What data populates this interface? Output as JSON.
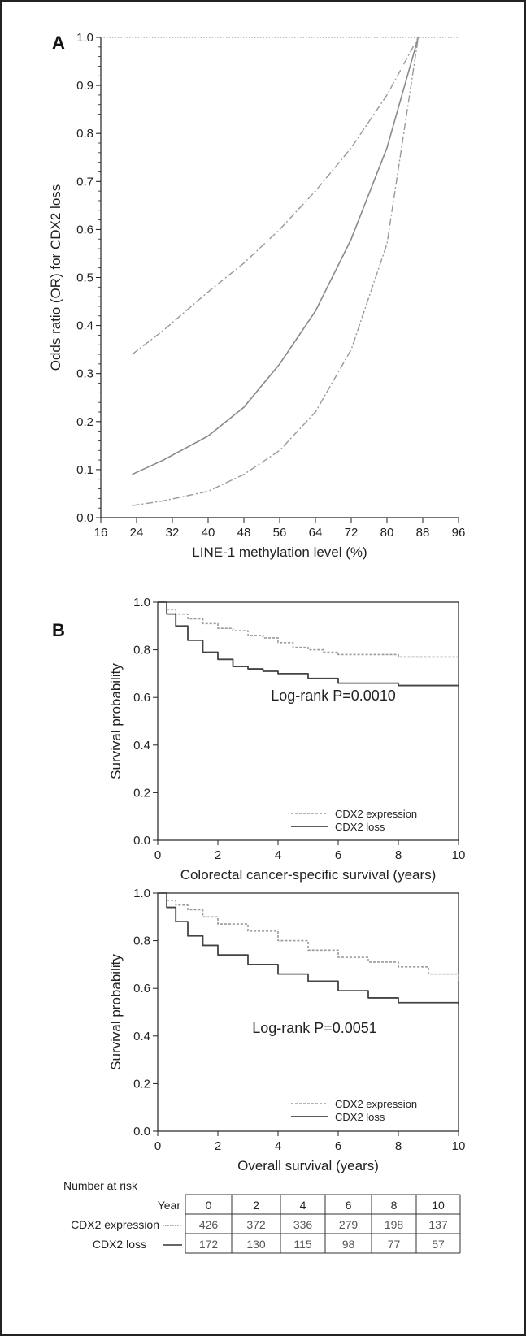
{
  "panels": {
    "a": "A",
    "b": "B"
  },
  "chart_data": [
    {
      "type": "line",
      "panel": "A",
      "xlabel": "LINE-1 methylation level (%)",
      "ylabel": "Odds ratio (OR) for CDX2 loss",
      "xlim": [
        16,
        96
      ],
      "ylim": [
        0.0,
        1.0
      ],
      "xticks": [
        16,
        24,
        32,
        40,
        48,
        56,
        64,
        72,
        80,
        88,
        96
      ],
      "yticks": [
        0.0,
        0.1,
        0.2,
        0.3,
        0.4,
        0.5,
        0.6,
        0.7,
        0.8,
        0.9,
        1.0
      ],
      "reference_line_y": 1.0,
      "series": [
        {
          "style": "solid",
          "x": [
            23,
            30,
            40,
            48,
            56,
            64,
            72,
            80,
            87
          ],
          "y": [
            0.09,
            0.12,
            0.17,
            0.23,
            0.32,
            0.43,
            0.58,
            0.77,
            1.0
          ]
        },
        {
          "style": "dash-dot",
          "x": [
            23,
            30,
            40,
            48,
            56,
            64,
            72,
            80,
            87
          ],
          "y": [
            0.34,
            0.39,
            0.47,
            0.53,
            0.6,
            0.68,
            0.77,
            0.88,
            1.0
          ]
        },
        {
          "style": "dash-dot",
          "x": [
            23,
            30,
            40,
            48,
            56,
            64,
            72,
            80,
            87
          ],
          "y": [
            0.025,
            0.035,
            0.055,
            0.09,
            0.14,
            0.22,
            0.35,
            0.57,
            1.0
          ]
        }
      ]
    },
    {
      "type": "line",
      "panel": "B",
      "xlabel": "Colorectal cancer-specific survival (years)",
      "ylabel": "Survival probability",
      "xlim": [
        0,
        10
      ],
      "ylim": [
        0.0,
        1.0
      ],
      "xticks": [
        0,
        2,
        4,
        6,
        8,
        10
      ],
      "yticks": [
        0.0,
        0.2,
        0.4,
        0.6,
        0.8,
        1.0
      ],
      "annotation": "Log-rank P=0.0010",
      "series": [
        {
          "name": "CDX2 expression",
          "style": "dotted",
          "x": [
            0,
            0.3,
            0.6,
            1,
            1.5,
            2,
            2.5,
            3,
            3.5,
            4,
            4.5,
            5,
            5.5,
            6,
            7,
            8,
            9,
            10
          ],
          "y": [
            1.0,
            0.97,
            0.95,
            0.93,
            0.91,
            0.89,
            0.88,
            0.86,
            0.85,
            0.83,
            0.81,
            0.8,
            0.79,
            0.78,
            0.78,
            0.77,
            0.77,
            0.77
          ]
        },
        {
          "name": "CDX2 loss",
          "style": "solid",
          "x": [
            0,
            0.3,
            0.6,
            1,
            1.5,
            2,
            2.5,
            3,
            3.5,
            4,
            5,
            6,
            7,
            8,
            9,
            10
          ],
          "y": [
            1.0,
            0.95,
            0.9,
            0.84,
            0.79,
            0.76,
            0.73,
            0.72,
            0.71,
            0.7,
            0.68,
            0.66,
            0.66,
            0.65,
            0.65,
            0.65
          ]
        }
      ]
    },
    {
      "type": "line",
      "panel": "B",
      "xlabel": "Overall survival (years)",
      "ylabel": "Survival probability",
      "xlim": [
        0,
        10
      ],
      "ylim": [
        0.0,
        1.0
      ],
      "xticks": [
        0,
        2,
        4,
        6,
        8,
        10
      ],
      "yticks": [
        0.0,
        0.2,
        0.4,
        0.6,
        0.8,
        1.0
      ],
      "annotation": "Log-rank P=0.0051",
      "series": [
        {
          "name": "CDX2 expression",
          "style": "dotted",
          "x": [
            0,
            0.3,
            0.6,
            1,
            1.5,
            2,
            3,
            4,
            5,
            6,
            7,
            8,
            9,
            10
          ],
          "y": [
            1.0,
            0.97,
            0.95,
            0.93,
            0.9,
            0.87,
            0.84,
            0.8,
            0.76,
            0.73,
            0.71,
            0.69,
            0.66,
            0.63
          ]
        },
        {
          "name": "CDX2 loss",
          "style": "solid",
          "x": [
            0,
            0.3,
            0.6,
            1,
            1.5,
            2,
            3,
            4,
            5,
            6,
            7,
            8,
            9,
            10
          ],
          "y": [
            1.0,
            0.94,
            0.88,
            0.82,
            0.78,
            0.74,
            0.7,
            0.66,
            0.63,
            0.59,
            0.56,
            0.54,
            0.54,
            0.53
          ]
        }
      ]
    }
  ],
  "legend": {
    "expression_label": "CDX2 expression",
    "loss_label": "CDX2 loss"
  },
  "risk_table": {
    "title": "Number at risk",
    "year_label": "Year",
    "years": [
      "0",
      "2",
      "4",
      "6",
      "8",
      "10"
    ],
    "rows": [
      {
        "label": "CDX2 expression",
        "values": [
          "426",
          "372",
          "336",
          "279",
          "198",
          "137"
        ]
      },
      {
        "label": "CDX2 loss",
        "values": [
          "172",
          "130",
          "115",
          "98",
          "77",
          "57"
        ]
      }
    ]
  }
}
